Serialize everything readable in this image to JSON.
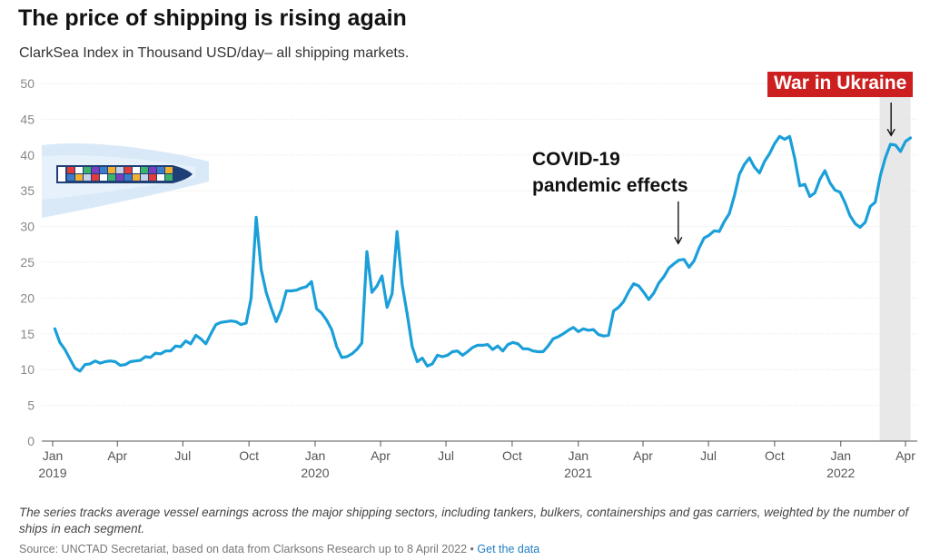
{
  "header": {
    "title": "The price of shipping is rising again",
    "subtitle": "ClarkSea Index in Thousand USD/day– all shipping markets."
  },
  "footer": {
    "note": "The series tracks average vessel earnings across the major shipping sectors, including tankers, bulkers, containerships and gas carriers, weighted by the number of ships in each segment.",
    "source": "Source: UNCTAD Secretariat, based on data from Clarksons Research up to 8 April 2022",
    "separator": "•",
    "link_label": "Get the data"
  },
  "illustration": {
    "icon": "container-ship-icon"
  },
  "chart_data": {
    "type": "line",
    "title": "The price of shipping is rising again",
    "subtitle": "ClarkSea Index in Thousand USD/day– all shipping markets.",
    "xlabel": "",
    "ylabel": "",
    "xlim": [
      "2019-01-01",
      "2022-04-30"
    ],
    "ylim": [
      0,
      50
    ],
    "y_ticks": [
      "0",
      "5",
      "10",
      "15",
      "20",
      "25",
      "30",
      "35",
      "40",
      "45",
      "50"
    ],
    "x_ticks": [
      {
        "date": "2019-01-01",
        "label": "Jan",
        "year": "2019"
      },
      {
        "date": "2019-04-01",
        "label": "Apr",
        "year": ""
      },
      {
        "date": "2019-07-01",
        "label": "Jul",
        "year": ""
      },
      {
        "date": "2019-10-01",
        "label": "Oct",
        "year": ""
      },
      {
        "date": "2020-01-01",
        "label": "Jan",
        "year": "2020"
      },
      {
        "date": "2020-04-01",
        "label": "Apr",
        "year": ""
      },
      {
        "date": "2020-07-01",
        "label": "Jul",
        "year": ""
      },
      {
        "date": "2020-10-01",
        "label": "Oct",
        "year": ""
      },
      {
        "date": "2021-01-01",
        "label": "Jan",
        "year": "2021"
      },
      {
        "date": "2021-04-01",
        "label": "Apr",
        "year": ""
      },
      {
        "date": "2021-07-01",
        "label": "Jul",
        "year": ""
      },
      {
        "date": "2021-10-01",
        "label": "Oct",
        "year": ""
      },
      {
        "date": "2022-01-01",
        "label": "Jan",
        "year": "2022"
      },
      {
        "date": "2022-04-01",
        "label": "Apr",
        "year": ""
      }
    ],
    "grid": true,
    "line_color": "#1a9fd9",
    "shaded_period": {
      "start": "2022-02-24",
      "end": "2022-04-08",
      "color": "#e8e8e8"
    },
    "annotations": [
      {
        "id": "covid",
        "text": [
          "COVID-19",
          "pandemic effects"
        ],
        "date": "2021-05-20",
        "value": 27.5
      },
      {
        "id": "ukraine",
        "text": [
          "War in Ukraine"
        ],
        "date": "2022-03-12",
        "value": 43.5,
        "style": "badge",
        "color": "#cc1f1f"
      }
    ],
    "series": [
      {
        "name": "",
        "x": [
          "2019-01-04",
          "2019-01-11",
          "2019-01-18",
          "2019-01-25",
          "2019-02-01",
          "2019-02-08",
          "2019-02-15",
          "2019-02-22",
          "2019-03-01",
          "2019-03-08",
          "2019-03-15",
          "2019-03-22",
          "2019-03-29",
          "2019-04-05",
          "2019-04-12",
          "2019-04-19",
          "2019-04-26",
          "2019-05-03",
          "2019-05-10",
          "2019-05-17",
          "2019-05-24",
          "2019-05-31",
          "2019-06-07",
          "2019-06-14",
          "2019-06-21",
          "2019-06-28",
          "2019-07-05",
          "2019-07-12",
          "2019-07-19",
          "2019-07-26",
          "2019-08-02",
          "2019-08-09",
          "2019-08-16",
          "2019-08-23",
          "2019-08-30",
          "2019-09-06",
          "2019-09-13",
          "2019-09-20",
          "2019-09-27",
          "2019-10-04",
          "2019-10-11",
          "2019-10-18",
          "2019-10-25",
          "2019-11-01",
          "2019-11-08",
          "2019-11-15",
          "2019-11-22",
          "2019-11-29",
          "2019-12-06",
          "2019-12-13",
          "2019-12-20",
          "2019-12-27",
          "2020-01-03",
          "2020-01-10",
          "2020-01-17",
          "2020-01-24",
          "2020-01-31",
          "2020-02-07",
          "2020-02-14",
          "2020-02-21",
          "2020-02-28",
          "2020-03-06",
          "2020-03-13",
          "2020-03-20",
          "2020-03-27",
          "2020-04-03",
          "2020-04-10",
          "2020-04-17",
          "2020-04-24",
          "2020-05-01",
          "2020-05-08",
          "2020-05-15",
          "2020-05-22",
          "2020-05-29",
          "2020-06-05",
          "2020-06-12",
          "2020-06-19",
          "2020-06-26",
          "2020-07-03",
          "2020-07-10",
          "2020-07-17",
          "2020-07-24",
          "2020-07-31",
          "2020-08-07",
          "2020-08-14",
          "2020-08-21",
          "2020-08-28",
          "2020-09-04",
          "2020-09-11",
          "2020-09-18",
          "2020-09-25",
          "2020-10-02",
          "2020-10-09",
          "2020-10-16",
          "2020-10-23",
          "2020-10-30",
          "2020-11-06",
          "2020-11-13",
          "2020-11-20",
          "2020-11-27",
          "2020-12-04",
          "2020-12-11",
          "2020-12-18",
          "2020-12-25",
          "2021-01-01",
          "2021-01-08",
          "2021-01-15",
          "2021-01-22",
          "2021-01-29",
          "2021-02-05",
          "2021-02-12",
          "2021-02-19",
          "2021-02-26",
          "2021-03-05",
          "2021-03-12",
          "2021-03-19",
          "2021-03-26",
          "2021-04-02",
          "2021-04-09",
          "2021-04-16",
          "2021-04-23",
          "2021-04-30",
          "2021-05-07",
          "2021-05-14",
          "2021-05-21",
          "2021-05-28",
          "2021-06-04",
          "2021-06-11",
          "2021-06-18",
          "2021-06-25",
          "2021-07-02",
          "2021-07-09",
          "2021-07-16",
          "2021-07-23",
          "2021-07-30",
          "2021-08-06",
          "2021-08-13",
          "2021-08-20",
          "2021-08-27",
          "2021-09-03",
          "2021-09-10",
          "2021-09-17",
          "2021-09-24",
          "2021-10-01",
          "2021-10-08",
          "2021-10-15",
          "2021-10-22",
          "2021-10-29",
          "2021-11-05",
          "2021-11-12",
          "2021-11-19",
          "2021-11-26",
          "2021-12-03",
          "2021-12-10",
          "2021-12-17",
          "2021-12-24",
          "2021-12-31",
          "2022-01-07",
          "2022-01-14",
          "2022-01-21",
          "2022-01-28",
          "2022-02-04",
          "2022-02-11",
          "2022-02-18",
          "2022-02-25",
          "2022-03-04",
          "2022-03-11",
          "2022-03-18",
          "2022-03-25",
          "2022-04-01",
          "2022-04-08"
        ],
        "values": [
          15.7,
          13.8,
          12.8,
          11.5,
          10.2,
          9.8,
          10.7,
          10.8,
          11.2,
          10.9,
          11.1,
          11.2,
          11.1,
          10.6,
          10.7,
          11.1,
          11.2,
          11.3,
          11.8,
          11.7,
          12.3,
          12.2,
          12.6,
          12.6,
          13.3,
          13.2,
          14.0,
          13.6,
          14.8,
          14.3,
          13.6,
          15.0,
          16.3,
          16.6,
          16.7,
          16.8,
          16.7,
          16.3,
          16.5,
          20.0,
          31.3,
          24.0,
          20.8,
          18.6,
          16.7,
          18.4,
          21.0,
          21.0,
          21.1,
          21.4,
          21.6,
          22.3,
          18.5,
          17.9,
          16.9,
          15.6,
          13.2,
          11.7,
          11.8,
          12.2,
          12.8,
          13.7,
          26.5,
          20.8,
          21.7,
          23.1,
          18.7,
          20.6,
          29.3,
          21.9,
          17.8,
          13.2,
          11.1,
          11.6,
          10.5,
          10.8,
          12.0,
          11.8,
          12.0,
          12.5,
          12.6,
          12.0,
          12.5,
          13.1,
          13.4,
          13.4,
          13.5,
          12.8,
          13.3,
          12.6,
          13.5,
          13.8,
          13.6,
          12.9,
          12.9,
          12.6,
          12.5,
          12.5,
          13.3,
          14.3,
          14.6,
          15.0,
          15.5,
          15.9,
          15.3,
          15.7,
          15.5,
          15.6,
          14.9,
          14.7,
          14.8,
          18.2,
          18.7,
          19.5,
          20.9,
          22.0,
          21.7,
          20.8,
          19.8,
          20.7,
          22.1,
          23.0,
          24.2,
          24.8,
          25.3,
          25.4,
          24.3,
          25.2,
          27.0,
          28.4,
          28.8,
          29.4,
          29.3,
          30.7,
          31.8,
          34.3,
          37.3,
          38.7,
          39.6,
          38.3,
          37.5,
          39.1,
          40.2,
          41.6,
          42.6,
          42.2,
          42.6,
          39.5,
          35.7,
          35.9,
          34.2,
          34.7,
          36.6,
          37.8,
          36.1,
          35.1,
          34.8,
          33.3,
          31.5,
          30.4,
          29.9,
          30.6,
          32.8,
          33.4,
          37.1,
          39.6,
          41.5,
          41.4,
          40.5,
          41.9,
          42.4
        ]
      }
    ]
  }
}
